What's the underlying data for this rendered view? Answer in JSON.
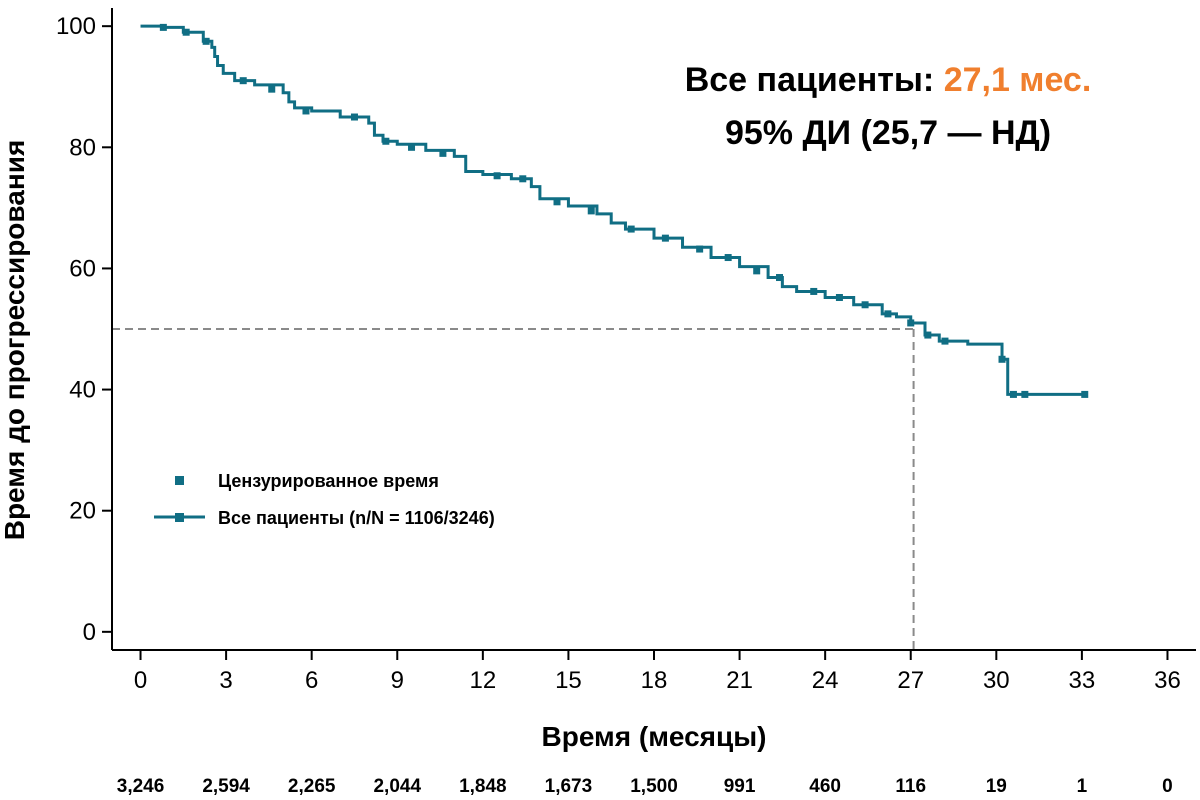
{
  "chart_data": {
    "type": "line",
    "title": "",
    "ylabel": "Время до прогрессирования",
    "xlabel": "Время (месяцы)",
    "xlim": [
      -1,
      37
    ],
    "ylim": [
      -3,
      103
    ],
    "x_ticks": [
      "0",
      "3",
      "6",
      "9",
      "12",
      "15",
      "18",
      "21",
      "24",
      "27",
      "30",
      "33",
      "36"
    ],
    "y_ticks": [
      "0",
      "20",
      "40",
      "60",
      "80",
      "100"
    ],
    "annotation": {
      "line1_prefix": "Все пациенты: ",
      "line1_value": "27,1 мес.",
      "line2": "95% ДИ (25,7 — НД)",
      "value_color": "#F07F2E"
    },
    "legend": {
      "position": "lower-left",
      "censored_label": "Цензурированное время",
      "series_label": "Все пациенты (n/N = 1106/3246)"
    },
    "median": {
      "x": 27.1,
      "y": 50
    },
    "series": [
      {
        "name": "Все пациенты (n/N = 1106/3246)",
        "color": "#106E84",
        "x": [
          0,
          0.8,
          1.5,
          2.2,
          2.5,
          2.6,
          2.7,
          2.9,
          3.3,
          4.0,
          5.0,
          5.2,
          5.4,
          6.0,
          7.0,
          8.0,
          8.2,
          8.5,
          9.0,
          10.0,
          11.0,
          11.4,
          12.0,
          13.0,
          13.7,
          14.0,
          15.0,
          16.0,
          16.5,
          17.0,
          18.0,
          19.0,
          20.0,
          21.0,
          22.0,
          22.5,
          23.0,
          24.0,
          25.0,
          26.0,
          26.5,
          27.0,
          27.5,
          28.0,
          29.0,
          30.0,
          30.2,
          30.4,
          31.0,
          33.1
        ],
        "y": [
          100,
          99.8,
          99.0,
          97.5,
          96.5,
          95.0,
          93.5,
          92.2,
          91.0,
          90.3,
          89.0,
          87.5,
          86.5,
          86.0,
          85.0,
          84.0,
          82.0,
          81.0,
          80.5,
          79.5,
          78.5,
          76.0,
          75.5,
          74.8,
          73.5,
          71.5,
          70.3,
          69.0,
          67.5,
          66.5,
          65.0,
          63.5,
          61.8,
          60.3,
          58.5,
          57.0,
          56.2,
          55.2,
          54.0,
          52.5,
          52.0,
          51.0,
          49.0,
          48.0,
          47.5,
          47.5,
          45.0,
          39.2,
          39.2,
          39.2
        ]
      }
    ],
    "censored_marks": {
      "x": [
        0.8,
        1.6,
        2.3,
        3.6,
        4.6,
        5.8,
        7.5,
        8.6,
        9.5,
        10.6,
        12.5,
        13.4,
        14.6,
        15.8,
        17.2,
        18.4,
        19.6,
        20.6,
        21.6,
        22.4,
        23.6,
        24.5,
        25.4,
        26.2,
        27.0,
        27.6,
        28.2,
        30.2,
        30.6,
        31.0,
        33.1
      ],
      "y": [
        99.8,
        99.0,
        97.5,
        91.0,
        89.6,
        86.0,
        85.0,
        81.0,
        80.0,
        79.0,
        75.3,
        74.8,
        71.0,
        69.5,
        66.5,
        65.0,
        63.2,
        61.8,
        59.6,
        58.5,
        56.2,
        55.2,
        54.0,
        52.5,
        51.0,
        49.0,
        48.0,
        45.0,
        39.2,
        39.2,
        39.2
      ]
    },
    "at_risk": {
      "x": [
        0,
        3,
        6,
        9,
        12,
        15,
        18,
        21,
        24,
        27,
        30,
        33,
        36
      ],
      "values": [
        "3,246",
        "2,594",
        "2,265",
        "2,044",
        "1,848",
        "1,673",
        "1,500",
        "991",
        "460",
        "116",
        "19",
        "1",
        "0"
      ]
    }
  }
}
